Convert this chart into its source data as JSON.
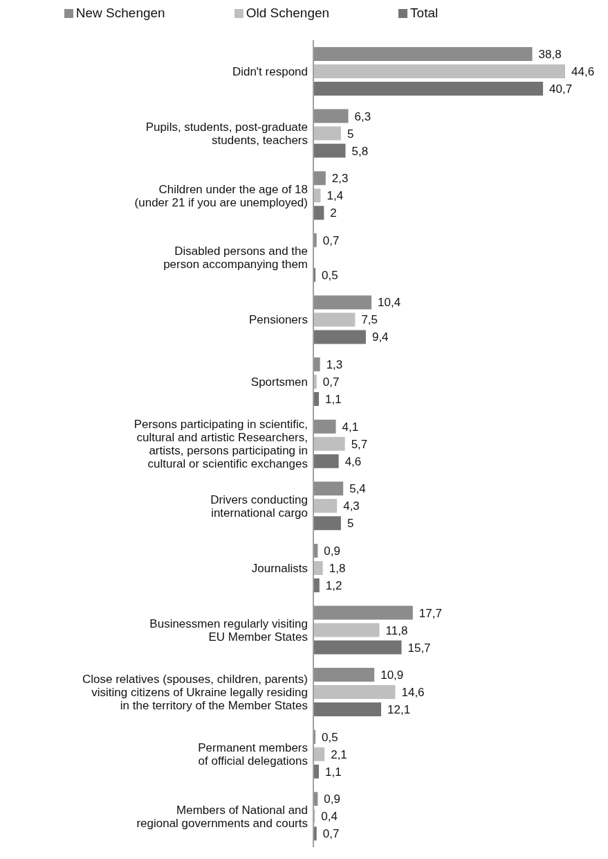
{
  "chart_data": {
    "type": "bar",
    "orientation": "horizontal",
    "legend": "top",
    "grid": false,
    "categories": [
      "Didn't respond",
      "Pupils, students, post-graduate\nstudents, teachers",
      "Children under the age of 18\n(under 21 if you are unemployed)",
      "Disabled persons and the\nperson accompanying them",
      "Pensioners",
      "Sportsmen",
      "Persons participating in scientific,\ncultural and artistic Researchers,\nartists, persons participating in\ncultural or scientific exchanges",
      "Drivers conducting\ninternational cargo",
      "Journalists",
      "Businessmen regularly visiting\nEU Member States",
      "Close relatives (spouses, children, parents)\nvisiting citizens of Ukraine legally residing\nin the territory of the Member States",
      "Permanent members\nof official delegations",
      "Members of National and\nregional governments and courts"
    ],
    "series": [
      {
        "name": "New Schengen",
        "color": "#8c8c8c",
        "values": [
          38.8,
          6.3,
          2.3,
          0.7,
          10.4,
          1.3,
          4.1,
          5.4,
          0.9,
          17.7,
          10.9,
          0.5,
          0.9
        ],
        "value_labels": [
          "38,8",
          "6,3",
          "2,3",
          "0,7",
          "10,4",
          "1,3",
          "4,1",
          "5,4",
          "0,9",
          "17,7",
          "10,9",
          "0,5",
          "0,9"
        ]
      },
      {
        "name": "Old Schengen",
        "color": "#bfbfbf",
        "values": [
          44.6,
          5,
          1.4,
          null,
          7.5,
          0.7,
          5.7,
          4.3,
          1.8,
          11.8,
          14.6,
          2.1,
          0.4
        ],
        "value_labels": [
          "44,6",
          "5",
          "1,4",
          null,
          "7,5",
          "0,7",
          "5,7",
          "4,3",
          "1,8",
          "11,8",
          "14,6",
          "2,1",
          "0,4"
        ]
      },
      {
        "name": "Total",
        "color": "#737373",
        "values": [
          40.7,
          5.8,
          2,
          0.5,
          9.4,
          1.1,
          4.6,
          5,
          1.2,
          15.7,
          12.1,
          1.1,
          0.7
        ],
        "value_labels": [
          "40,7",
          "5,8",
          "2",
          "0,5",
          "9,4",
          "1,1",
          "4,6",
          "5",
          "1,2",
          "15,7",
          "12,1",
          "1,1",
          "0,7"
        ]
      }
    ]
  }
}
